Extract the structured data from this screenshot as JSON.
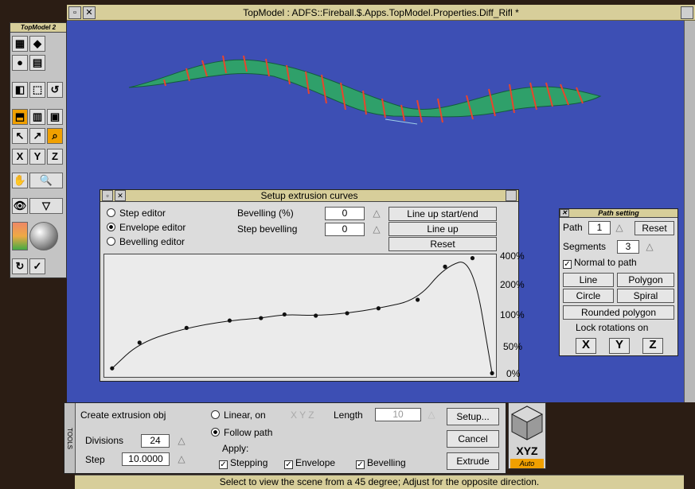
{
  "window": {
    "title": "TopModel : ADFS::Fireball.$.Apps.TopModel.Properties.Diff_Rifl *",
    "back_icon": "back-icon",
    "close_icon": "close-icon"
  },
  "toolbox": {
    "title": "TopModel 2",
    "tools": [
      "grid-icon",
      "cube-icon",
      "sphere-icon",
      "texture-icon",
      "mirror-icon",
      "select-icon",
      "undo-icon",
      "hand-icon",
      "zoom-icon",
      "eye-icon",
      "X",
      "Y",
      "Z",
      "wand-icon",
      "check-icon",
      "colour-icon",
      "ball-icon"
    ],
    "axis_labels": [
      "X",
      "Y",
      "Z"
    ]
  },
  "extrusion": {
    "title": "Setup extrusion curves",
    "modes": [
      {
        "label": "Step editor",
        "selected": false
      },
      {
        "label": "Envelope editor",
        "selected": true
      },
      {
        "label": "Bevelling editor",
        "selected": false
      }
    ],
    "bevelling_label": "Bevelling (%)",
    "bevelling_value": "0",
    "step_bevelling_label": "Step bevelling",
    "step_bevelling_value": "0",
    "lineup_start_end": "Line up start/end",
    "lineup": "Line up",
    "reset": "Reset",
    "axis_ticks": [
      "400%",
      "200%",
      "100%",
      "50%",
      "0%"
    ]
  },
  "chart_data": {
    "type": "line",
    "ylabels": [
      "400%",
      "200%",
      "100%",
      "50%",
      "0%"
    ],
    "points": [
      [
        0.02,
        0.07
      ],
      [
        0.09,
        0.28
      ],
      [
        0.21,
        0.4
      ],
      [
        0.32,
        0.46
      ],
      [
        0.4,
        0.48
      ],
      [
        0.46,
        0.51
      ],
      [
        0.54,
        0.5
      ],
      [
        0.62,
        0.52
      ],
      [
        0.7,
        0.56
      ],
      [
        0.8,
        0.63
      ],
      [
        0.87,
        0.9
      ],
      [
        0.94,
        0.97
      ],
      [
        0.99,
        0.03
      ]
    ]
  },
  "path_setting": {
    "title": "Path setting",
    "path_label": "Path",
    "path_value": "1",
    "reset": "Reset",
    "segments_label": "Segments",
    "segments_value": "3",
    "normal_label": "Normal to path",
    "normal_checked": true,
    "buttons": [
      "Line",
      "Polygon",
      "Circle",
      "Spiral"
    ],
    "rounded": "Rounded polygon",
    "lock_label": "Lock rotations on",
    "lock_axes": [
      "X",
      "Y",
      "Z"
    ]
  },
  "tools_panel": {
    "side_label": "TOOLS",
    "create_label": "Create extrusion obj",
    "divisions_label": "Divisions",
    "divisions_value": "24",
    "step_label": "Step",
    "step_value": "10.0000",
    "linear_label": "Linear, on",
    "linear_axes": "X Y Z",
    "length_label": "Length",
    "length_value": "10",
    "follow_label": "Follow path",
    "apply_label": "Apply:",
    "stepping_label": "Stepping",
    "envelope_label": "Envelope",
    "bevelling_label": "Bevelling",
    "setup_btn": "Setup...",
    "cancel_btn": "Cancel",
    "extrude_btn": "Extrude",
    "xyz_label": "XYZ",
    "auto_label": "Auto"
  },
  "status": "Select to view the scene from a 45 degree; Adjust for the opposite direction.",
  "colors": {
    "viewport": "#3d4fb4",
    "title": "#d7ce9a",
    "model": "#2fa06a",
    "rings": "#e8452c"
  }
}
